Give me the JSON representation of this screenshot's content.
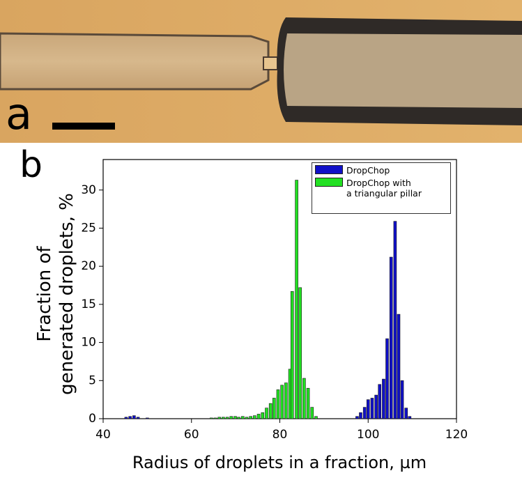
{
  "panel_labels": [
    "a",
    "b"
  ],
  "chart_data": {
    "type": "bar",
    "xlabel": "Radius of droplets in a fraction, µm",
    "ylabel": "Fraction of\ngenerated droplets, %",
    "xlim": [
      40,
      120
    ],
    "xticks": [
      40,
      60,
      80,
      100,
      120
    ],
    "ylim": [
      0,
      34
    ],
    "yticks": [
      0,
      5,
      10,
      15,
      20,
      25,
      30
    ],
    "legend": "top-right",
    "series": [
      {
        "name": "DropChop",
        "color": "#1010c8",
        "x": [
          45.2,
          46.1,
          47.0,
          47.9,
          50.0,
          97.5,
          98.3,
          99.2,
          100.0,
          100.9,
          101.8,
          102.6,
          103.5,
          104.3,
          105.2,
          106.1,
          106.9,
          107.7,
          108.6,
          109.4
        ],
        "values": [
          0.2,
          0.3,
          0.4,
          0.2,
          0.1,
          0.3,
          0.8,
          1.5,
          2.5,
          2.7,
          3.1,
          4.5,
          5.2,
          10.5,
          21.2,
          25.9,
          13.7,
          5.0,
          1.4,
          0.3
        ]
      },
      {
        "name": "DropChop with\na triangular pillar",
        "color": "#22e022",
        "x": [
          64.5,
          65.4,
          66.3,
          67.2,
          68.1,
          69.0,
          69.9,
          70.7,
          71.6,
          72.5,
          73.4,
          74.3,
          75.2,
          76.1,
          77.0,
          77.9,
          78.7,
          79.6,
          80.5,
          81.4,
          82.3,
          82.8,
          83.8,
          84.6,
          85.5,
          86.4,
          87.3,
          88.2
        ],
        "values": [
          0.1,
          0.1,
          0.2,
          0.2,
          0.2,
          0.3,
          0.3,
          0.2,
          0.3,
          0.2,
          0.3,
          0.4,
          0.6,
          0.8,
          1.4,
          2.0,
          2.7,
          3.8,
          4.4,
          4.7,
          6.5,
          16.7,
          31.3,
          17.2,
          5.3,
          4.0,
          1.5,
          0.3
        ]
      }
    ]
  }
}
